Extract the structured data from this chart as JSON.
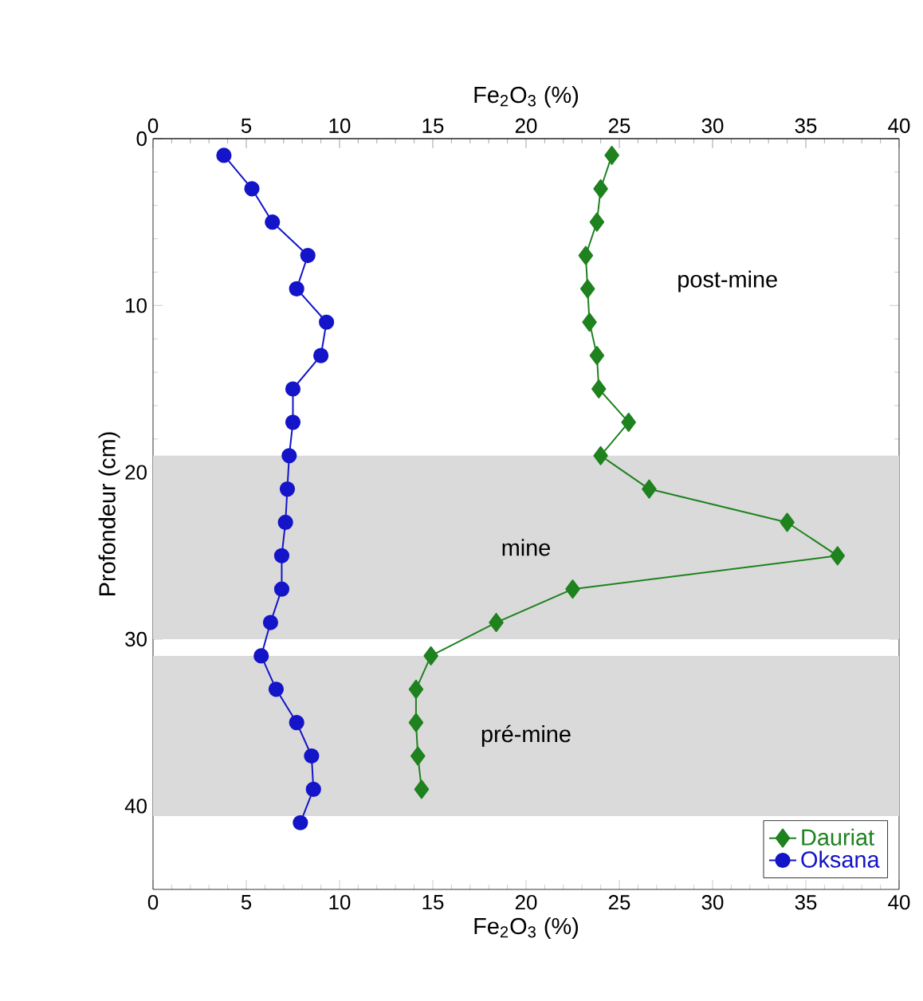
{
  "chart_data": {
    "type": "line",
    "xlabel": "Fe$_{2}$O$_{3}$ (%)",
    "x2label": "Fe$_{2}$O$_{3}$ (%)",
    "ylabel": "Profondeur (cm)",
    "xlim": [
      0,
      40
    ],
    "xticks": [
      0,
      5,
      10,
      15,
      20,
      25,
      30,
      35,
      40
    ],
    "x2lim": [
      0,
      40
    ],
    "x2ticks": [
      0,
      5,
      10,
      15,
      20,
      25,
      30,
      35,
      40
    ],
    "ylim": [
      45,
      0
    ],
    "yticks": [
      0,
      10,
      20,
      30,
      40
    ],
    "series": [
      {
        "name": "Dauriat",
        "color": "#1e821e",
        "marker": "diamond",
        "x": [
          24.6,
          24.0,
          23.8,
          23.2,
          23.3,
          23.4,
          23.8,
          23.9,
          25.5,
          24.0,
          26.6,
          34.0,
          36.7,
          22.5,
          18.4,
          14.9,
          14.1,
          14.1,
          14.2,
          14.4
        ],
        "values": [
          1,
          3,
          5,
          7,
          9,
          11,
          13,
          15,
          17,
          19,
          21,
          23,
          25,
          27,
          29,
          31,
          33,
          35,
          37,
          39
        ]
      },
      {
        "name": "Oksana",
        "color": "#1414c8",
        "marker": "circle",
        "x": [
          3.8,
          5.3,
          6.4,
          8.3,
          7.7,
          9.3,
          9.0,
          7.5,
          7.5,
          7.3,
          7.2,
          7.1,
          6.9,
          6.9,
          6.3,
          5.8,
          6.6,
          7.7,
          8.5,
          8.6,
          7.9
        ],
        "values": [
          1,
          3,
          5,
          7,
          9,
          11,
          13,
          15,
          17,
          19,
          21,
          23,
          25,
          27,
          29,
          31,
          33,
          35,
          37,
          39,
          41
        ]
      }
    ],
    "bands": [
      {
        "axis": "y",
        "from": 19,
        "to": 30,
        "label": "mine",
        "color": "#dadada"
      },
      {
        "axis": "y",
        "from": 31,
        "to": 40.6,
        "label": "pré-mine",
        "color": "#dadada"
      }
    ],
    "annotations": [
      "post-mine"
    ],
    "legend": "bottom right",
    "line_style": "solid",
    "grid": false
  }
}
